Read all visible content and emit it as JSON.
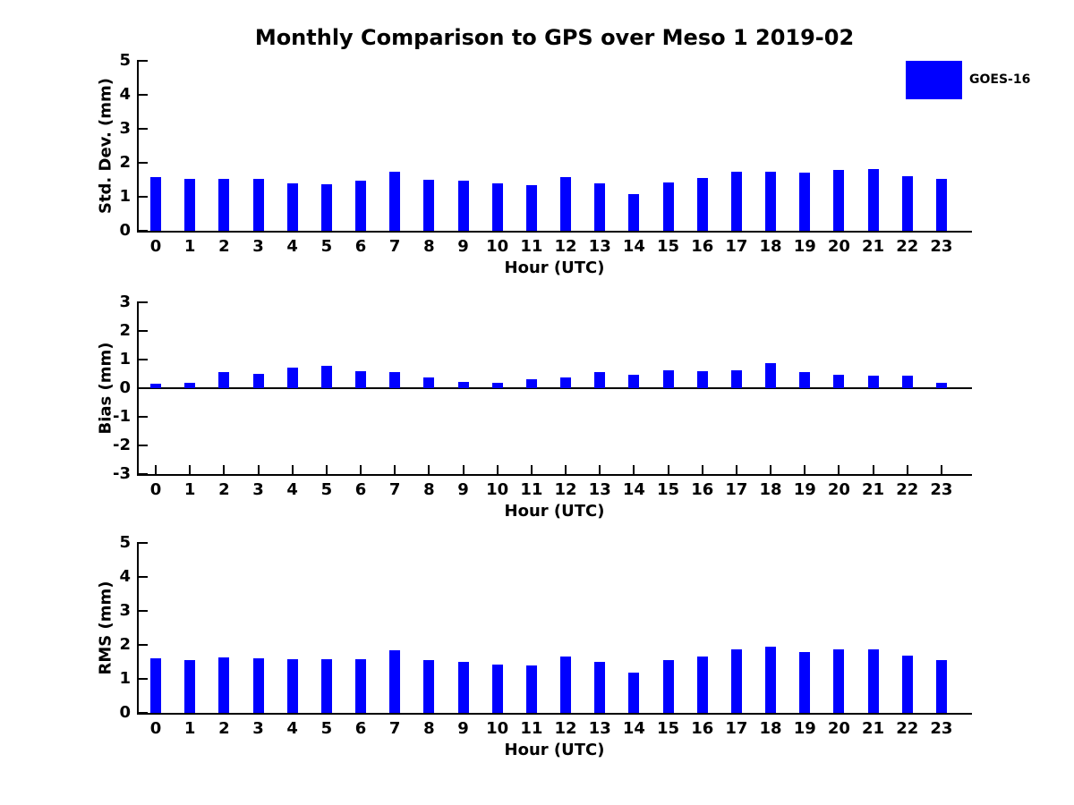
{
  "figure": {
    "title": "Monthly Comparison to GPS over Meso 1 2019-02",
    "legend": {
      "label": "GOES-16",
      "color": "#0000ff"
    },
    "text_color": "#000000",
    "background": "#ffffff"
  },
  "chart_data": [
    {
      "type": "bar",
      "name": "std-dev",
      "series_name": "GOES-16",
      "bar_color": "#0000ff",
      "grid": false,
      "legend_position": "upper-right-outside",
      "ylabel": "Std. Dev. (mm)",
      "xlabel": "Hour (UTC)",
      "ylim": [
        0,
        5
      ],
      "yticks": [
        0,
        1,
        2,
        3,
        4,
        5
      ],
      "categories": [
        0,
        1,
        2,
        3,
        4,
        5,
        6,
        7,
        8,
        9,
        10,
        11,
        12,
        13,
        14,
        15,
        16,
        17,
        18,
        19,
        20,
        21,
        22,
        23
      ],
      "values": [
        1.58,
        1.53,
        1.53,
        1.53,
        1.4,
        1.37,
        1.47,
        1.74,
        1.5,
        1.47,
        1.4,
        1.34,
        1.58,
        1.4,
        1.08,
        1.42,
        1.55,
        1.74,
        1.74,
        1.71,
        1.79,
        1.82,
        1.61,
        1.53
      ]
    },
    {
      "type": "bar",
      "name": "bias",
      "series_name": "GOES-16",
      "bar_color": "#0000ff",
      "grid": false,
      "ylabel": "Bias (mm)",
      "xlabel": "Hour (UTC)",
      "ylim": [
        -3,
        3
      ],
      "yticks": [
        3,
        2,
        1,
        0,
        -1,
        -2,
        -3
      ],
      "categories": [
        0,
        1,
        2,
        3,
        4,
        5,
        6,
        7,
        8,
        9,
        10,
        11,
        12,
        13,
        14,
        15,
        16,
        17,
        18,
        19,
        20,
        21,
        22,
        23
      ],
      "values": [
        0.15,
        0.2,
        0.55,
        0.5,
        0.72,
        0.78,
        0.6,
        0.57,
        0.38,
        0.23,
        0.18,
        0.3,
        0.38,
        0.55,
        0.48,
        0.64,
        0.58,
        0.62,
        0.88,
        0.55,
        0.48,
        0.45,
        0.45,
        0.2
      ]
    },
    {
      "type": "bar",
      "name": "rms",
      "series_name": "GOES-16",
      "bar_color": "#0000ff",
      "grid": false,
      "ylabel": "RMS (mm)",
      "xlabel": "Hour (UTC)",
      "ylim": [
        0,
        5
      ],
      "yticks": [
        0,
        1,
        2,
        3,
        4,
        5
      ],
      "categories": [
        0,
        1,
        2,
        3,
        4,
        5,
        6,
        7,
        8,
        9,
        10,
        11,
        12,
        13,
        14,
        15,
        16,
        17,
        18,
        19,
        20,
        21,
        22,
        23
      ],
      "values": [
        1.61,
        1.56,
        1.63,
        1.61,
        1.58,
        1.58,
        1.58,
        1.85,
        1.56,
        1.51,
        1.43,
        1.4,
        1.65,
        1.51,
        1.19,
        1.56,
        1.65,
        1.87,
        1.95,
        1.79,
        1.87,
        1.87,
        1.69,
        1.54
      ]
    }
  ]
}
